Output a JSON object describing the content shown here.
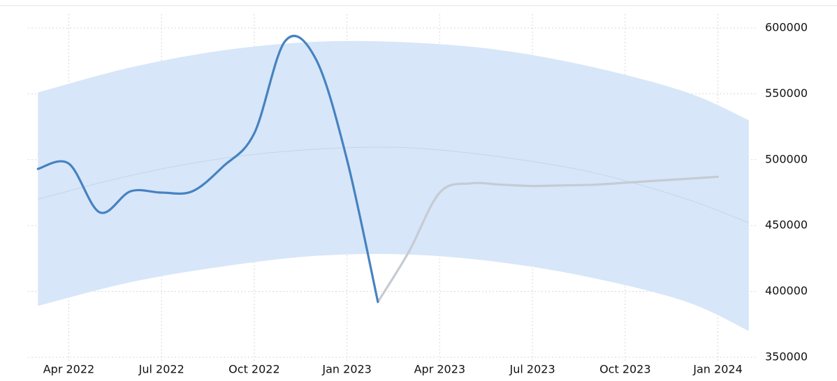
{
  "chart_data": {
    "type": "line",
    "x": [
      "2022-03",
      "2022-04",
      "2022-05",
      "2022-06",
      "2022-07",
      "2022-08",
      "2022-09",
      "2022-10",
      "2022-11",
      "2022-12",
      "2023-01",
      "2023-02",
      "2023-03",
      "2023-04",
      "2023-05",
      "2023-06",
      "2023-07",
      "2023-08",
      "2023-09",
      "2023-10",
      "2023-11",
      "2023-12",
      "2024-01",
      "2024-02"
    ],
    "series": [
      {
        "color": "#4682c0",
        "values": [
          493000,
          497000,
          460000,
          476000,
          475000,
          476000,
          495000,
          520000,
          590000,
          576000,
          500000,
          392000,
          null,
          null,
          null,
          null,
          null,
          null,
          null,
          null,
          null,
          null,
          null,
          null
        ]
      },
      {
        "color": "#c6cbd3",
        "values": [
          null,
          null,
          null,
          null,
          null,
          null,
          null,
          null,
          null,
          null,
          null,
          392000,
          430000,
          475000,
          482000,
          481000,
          480000,
          480500,
          481000,
          482500,
          484000,
          485500,
          487000,
          null
        ]
      }
    ],
    "band": {
      "color": "#d7e6f9",
      "line_color": "#c5d5ea",
      "x": [
        "2022-03",
        "2022-06",
        "2022-09",
        "2022-12",
        "2023-03",
        "2023-06",
        "2023-09",
        "2023-12",
        "2024-02"
      ],
      "upper": [
        551000,
        570000,
        583000,
        589500,
        589000,
        583000,
        570000,
        551000,
        530000
      ],
      "middle": [
        470000,
        488000,
        501000,
        508000,
        509000,
        502000,
        490000,
        470000,
        452000
      ],
      "lower": [
        389000,
        407000,
        419000,
        427000,
        428000,
        422000,
        410000,
        392000,
        370000
      ]
    },
    "xlim": [
      "2022-02",
      "2024-03"
    ],
    "xticks": [
      {
        "value": "2022-04",
        "label": "Apr 2022"
      },
      {
        "value": "2022-07",
        "label": "Jul 2022"
      },
      {
        "value": "2022-10",
        "label": "Oct 2022"
      },
      {
        "value": "2023-01",
        "label": "Jan 2023"
      },
      {
        "value": "2023-04",
        "label": "Apr 2023"
      },
      {
        "value": "2023-07",
        "label": "Jul 2023"
      },
      {
        "value": "2023-10",
        "label": "Oct 2023"
      },
      {
        "value": "2024-01",
        "label": "Jan 2024"
      }
    ],
    "ylim": [
      350000,
      600000
    ],
    "yticks": [
      350000,
      400000,
      450000,
      500000,
      550000,
      600000
    ],
    "grid": true
  }
}
